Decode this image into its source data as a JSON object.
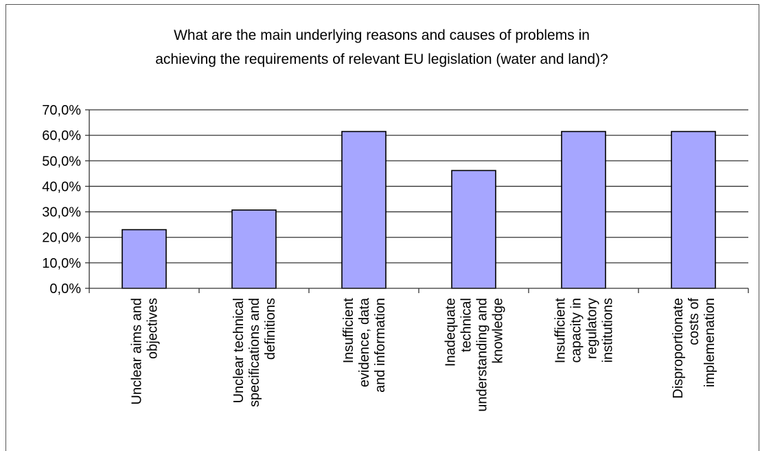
{
  "chart_data": {
    "type": "bar",
    "title": [
      "What are the main underlying reasons and causes of problems in",
      "achieving the requirements of relevant EU legislation (water and land)?"
    ],
    "categories": [
      [
        "Unclear aims and",
        "objectives"
      ],
      [
        "Unclear technical",
        "specifications and",
        "definitions"
      ],
      [
        "Insufficient",
        "evidence, data",
        "and information"
      ],
      [
        "Inadequate",
        "technical",
        "understanding and",
        "knowledge"
      ],
      [
        "Insufficient",
        "capacity in",
        "regulatory",
        "institutions"
      ],
      [
        "Disproportionate",
        "costs of",
        "implemenation"
      ]
    ],
    "values": [
      23.0,
      30.7,
      61.5,
      46.2,
      61.5,
      61.5
    ],
    "ylim": [
      0,
      70
    ],
    "ytick_step": 10,
    "ytick_labels": [
      "0,0%",
      "10,0%",
      "20,0%",
      "30,0%",
      "40,0%",
      "50,0%",
      "60,0%",
      "70,0%"
    ],
    "xlabel": "",
    "ylabel": "",
    "grid": true,
    "legend": false,
    "colors": {
      "bar_fill": "#a6a6ff",
      "bar_stroke": "#000000",
      "grid": "#333333",
      "axis": "#333333"
    }
  }
}
